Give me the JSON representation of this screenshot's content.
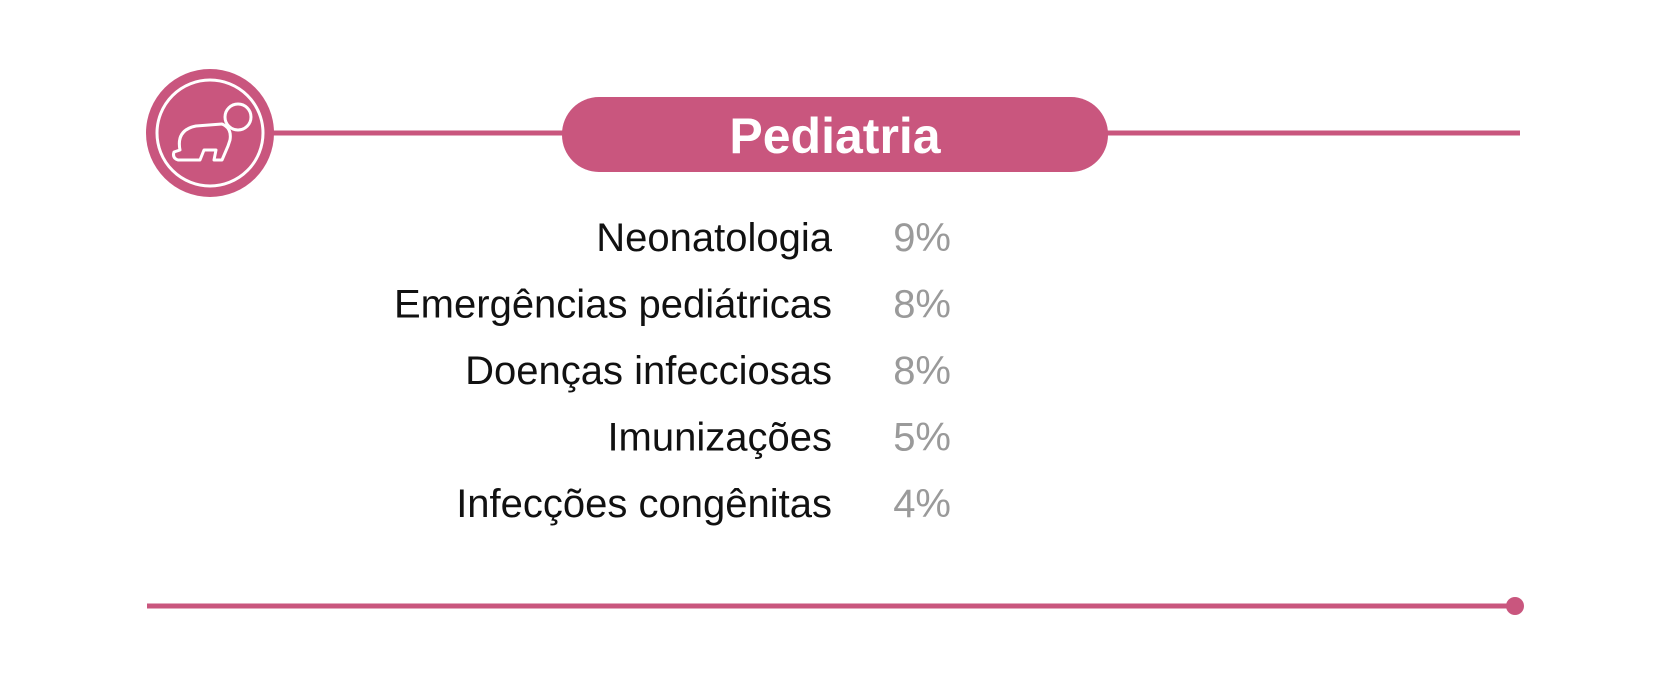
{
  "colors": {
    "accent": "#c9567e",
    "bar_start": "#c90e5e",
    "bar_end": "#e8173f",
    "label": "#111111",
    "value": "#9a9a9a",
    "background": "#ffffff"
  },
  "header": {
    "icon": "crawling-baby-icon"
  },
  "chart_data": {
    "type": "bar",
    "orientation": "horizontal",
    "title": "Pediatria",
    "categories": [
      "Neonatologia",
      "Emergências pediátricas",
      "Doenças infecciosas",
      "Imunizações",
      "Infecções congênitas"
    ],
    "values": [
      9,
      8,
      8,
      5,
      4
    ],
    "value_labels": [
      "9%",
      "8%",
      "8%",
      "5%",
      "4%"
    ],
    "unit": "%",
    "xlim": [
      0,
      9
    ],
    "grid": false,
    "legend": "none"
  }
}
